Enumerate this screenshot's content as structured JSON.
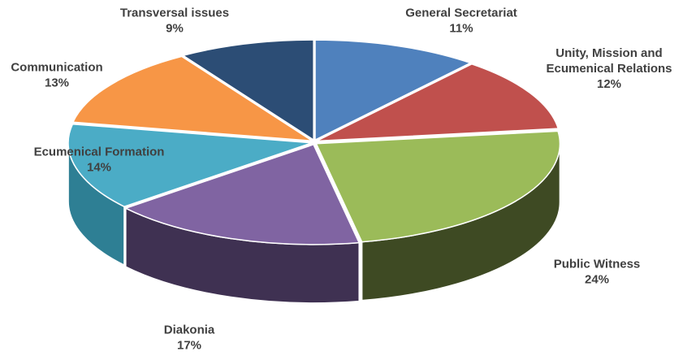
{
  "chart_data": {
    "type": "pie",
    "style": "3d",
    "title": "",
    "slices": [
      {
        "label": "General Secretariat",
        "label_lines": [
          "General Secretariat"
        ],
        "percent_label": "11%",
        "value": 11,
        "color": "#4F81BD",
        "side_color": "#2C4D75"
      },
      {
        "label": "Unity, Mission and Ecumenical Relations",
        "label_lines": [
          "Unity, Mission and",
          "Ecumenical Relations"
        ],
        "percent_label": "12%",
        "value": 12,
        "color": "#C0504D",
        "side_color": "#772C2A"
      },
      {
        "label": "Public Witness",
        "label_lines": [
          "Public Witness"
        ],
        "percent_label": "24%",
        "value": 24,
        "color": "#9BBB59",
        "side_color": "#3E4A23"
      },
      {
        "label": "Diakonia",
        "label_lines": [
          "Diakonia"
        ],
        "percent_label": "17%",
        "value": 17,
        "color": "#8064A2",
        "side_color": "#3F3152"
      },
      {
        "label": "Ecumenical Formation",
        "label_lines": [
          "Ecumenical Formation"
        ],
        "percent_label": "14%",
        "value": 14,
        "color": "#4BACC6",
        "side_color": "#2E7F94"
      },
      {
        "label": "Communication",
        "label_lines": [
          "Communication"
        ],
        "percent_label": "13%",
        "value": 13,
        "color": "#F79646",
        "side_color": "#B66A2C"
      },
      {
        "label": "Transversal issues",
        "label_lines": [
          "Transversal issues"
        ],
        "percent_label": "9%",
        "value": 9,
        "color": "#2C4D75",
        "side_color": "#1B2F48"
      }
    ]
  }
}
